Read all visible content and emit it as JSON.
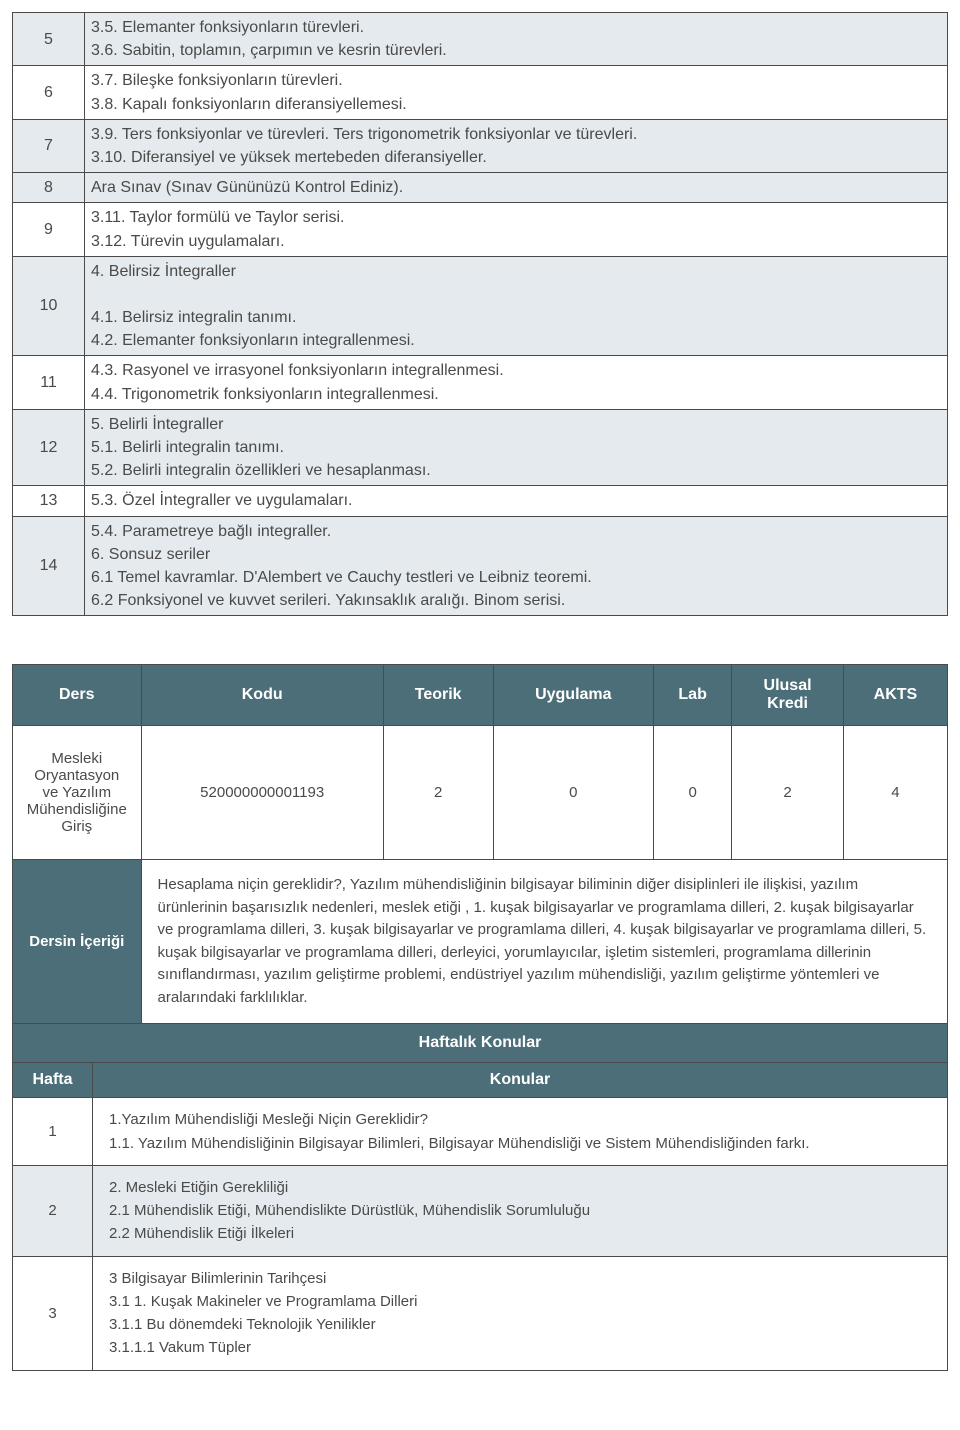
{
  "syllabus": {
    "border_color": "#4a4a4a",
    "alt_bg": "#e4eaed",
    "text_color": "#4a4a4a",
    "rows": [
      {
        "num": "5",
        "alt": true,
        "content": "3.5. Elemanter fonksiyonların türevleri.\n3.6. Sabitin, toplamın, çarpımın ve kesrin türevleri."
      },
      {
        "num": "6",
        "alt": false,
        "content": "3.7. Bileşke fonksiyonların türevleri.\n3.8. Kapalı fonksiyonların diferansiyellemesi."
      },
      {
        "num": "7",
        "alt": true,
        "content": "3.9. Ters fonksiyonlar ve türevleri. Ters trigonometrik fonksiyonlar ve türevleri.\n3.10. Diferansiyel ve yüksek mertebeden diferansiyeller."
      },
      {
        "num": "8",
        "alt": true,
        "content": "Ara Sınav (Sınav Gününüzü Kontrol Ediniz)."
      },
      {
        "num": "9",
        "alt": false,
        "content": "3.11. Taylor formülü ve Taylor serisi.\n3.12. Türevin uygulamaları."
      },
      {
        "num": "10",
        "alt": true,
        "content": "4. Belirsiz İntegraller\n\n4.1. Belirsiz integralin tanımı.\n4.2. Elemanter fonksiyonların integrallenmesi."
      },
      {
        "num": "11",
        "alt": false,
        "content": "4.3. Rasyonel ve irrasyonel fonksiyonların integrallenmesi.\n4.4. Trigonometrik fonksiyonların integrallenmesi."
      },
      {
        "num": "12",
        "alt": true,
        "content": "5. Belirli İntegraller\n5.1. Belirli integralin tanımı.\n5.2. Belirli integralin özellikleri ve hesaplanması."
      },
      {
        "num": "13",
        "alt": false,
        "content": "5.3. Özel İntegraller ve uygulamaları."
      },
      {
        "num": "14",
        "alt": true,
        "content": "5.4. Parametreye bağlı integraller.\n6. Sonsuz seriler\n6.1 Temel kavramlar. D'Alembert ve Cauchy testleri ve Leibniz teoremi.\n6.2 Fonksiyonel ve kuvvet serileri. Yakınsaklık aralığı. Binom serisi."
      }
    ]
  },
  "course": {
    "header_bg": "#4b6e78",
    "header_fg": "#ffffff",
    "headers": {
      "ders": "Ders",
      "kodu": "Kodu",
      "teorik": "Teorik",
      "uygulama": "Uygulama",
      "lab": "Lab",
      "ulusal_kredi": "Ulusal\nKredi",
      "akts": "AKTS"
    },
    "values": {
      "ders": "Mesleki Oryantasyon ve Yazılım Mühendisliğine Giriş",
      "kodu": "520000000001193",
      "teorik": "2",
      "uygulama": "0",
      "lab": "0",
      "ulusal_kredi": "2",
      "akts": "4"
    },
    "content_label": "Dersin İçeriği",
    "content_text": "Hesaplama niçin gereklidir?, Yazılım mühendisliğinin bilgisayar biliminin diğer disiplinleri ile ilişkisi, yazılım ürünlerinin başarısızlık nedenleri, meslek etiği , 1. kuşak bilgisayarlar ve programlama dilleri, 2. kuşak bilgisayarlar ve programlama dilleri, 3. kuşak bilgisayarlar ve programlama dilleri, 4. kuşak bilgisayarlar ve programlama dilleri, 5. kuşak bilgisayarlar ve programlama dilleri, derleyici, yorumlayıcılar, işletim sistemleri, programlama dillerinin sınıflandırması, yazılım geliştirme problemi, endüstriyel yazılım mühendisliği, yazılım geliştirme yöntemleri ve aralarındaki farklılıklar.",
    "weekly_title": "Haftalık Konular",
    "week_header": "Hafta",
    "topics_header": "Konular",
    "weeks": [
      {
        "num": "1",
        "alt": false,
        "content": "1.Yazılım Mühendisliği Mesleği Niçin Gereklidir?\n1.1. Yazılım Mühendisliğinin Bilgisayar Bilimleri, Bilgisayar Mühendisliği ve Sistem Mühendisliğinden farkı."
      },
      {
        "num": "2",
        "alt": true,
        "content": "2. Mesleki Etiğin Gerekliliği\n2.1 Mühendislik Etiği, Mühendislikte Dürüstlük, Mühendislik Sorumluluğu\n2.2 Mühendislik Etiği İlkeleri"
      },
      {
        "num": "3",
        "alt": false,
        "content": "3 Bilgisayar Bilimlerinin Tarihçesi\n3.1 1. Kuşak Makineler ve Programlama Dilleri\n3.1.1 Bu dönemdeki Teknolojik Yenilikler\n3.1.1.1 Vakum Tüpler"
      }
    ]
  }
}
